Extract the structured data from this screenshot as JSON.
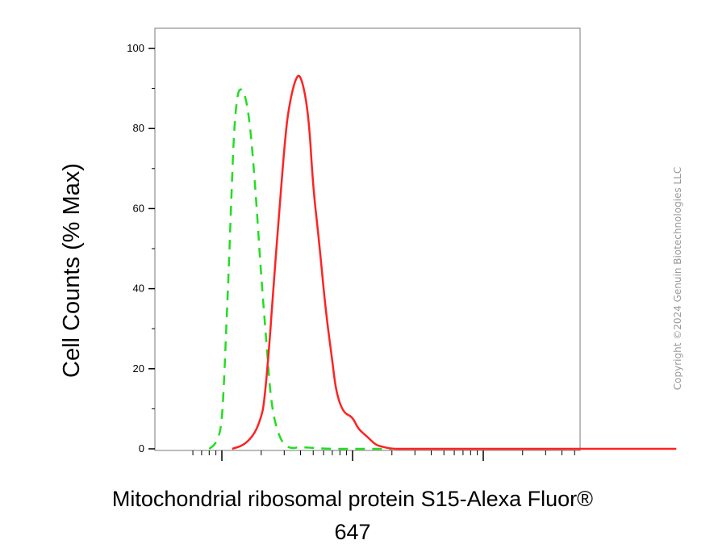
{
  "chart_data": {
    "type": "line",
    "title": "",
    "ylabel": "Cell Counts (% Max)",
    "xlabel_line1": "Mitochondrial ribosomal protein S15-Alexa Fluor®",
    "xlabel_line2": "647",
    "ylim": [
      0,
      100
    ],
    "y_ticks": [
      "0",
      "20",
      "40",
      "60",
      "80",
      "100"
    ],
    "x_scale": "log",
    "xlim": [
      0.6,
      4000
    ],
    "grid": false,
    "legend": "none",
    "series": [
      {
        "color": "#22dd22",
        "style": "dashed",
        "x": [
          0.8,
          0.88,
          0.95,
          1.0,
          1.04,
          1.08,
          1.13,
          1.18,
          1.24,
          1.32,
          1.4,
          1.48,
          1.58,
          1.7,
          1.85,
          2.0,
          2.2,
          2.4,
          2.8,
          3.3,
          4.0,
          6.0,
          10,
          20
        ],
        "y": [
          0,
          1,
          3,
          7,
          17,
          30,
          45,
          62,
          80,
          89,
          90,
          89,
          85,
          76,
          60,
          43,
          26,
          10,
          2,
          0,
          0.5,
          0,
          0,
          0
        ]
      },
      {
        "color": "#ff2222",
        "style": "solid",
        "x": [
          1.2,
          1.5,
          1.8,
          2.0,
          2.1,
          2.3,
          2.5,
          2.7,
          3.0,
          3.2,
          3.6,
          4.0,
          4.6,
          5.0,
          5.5,
          6.2,
          7.0,
          7.5,
          8.5,
          10,
          11,
          13,
          15,
          17,
          20,
          25,
          40,
          100,
          1000,
          3000
        ],
        "y": [
          0,
          1,
          4,
          8,
          11,
          25,
          42,
          56,
          75,
          84,
          92,
          94,
          84,
          65,
          53,
          35,
          22,
          14,
          9,
          8,
          5,
          3,
          1,
          0.5,
          0,
          0,
          0,
          0,
          0,
          0
        ]
      }
    ]
  },
  "watermark": "Copyright ©2024 Genuin Biotechnologies LLC"
}
